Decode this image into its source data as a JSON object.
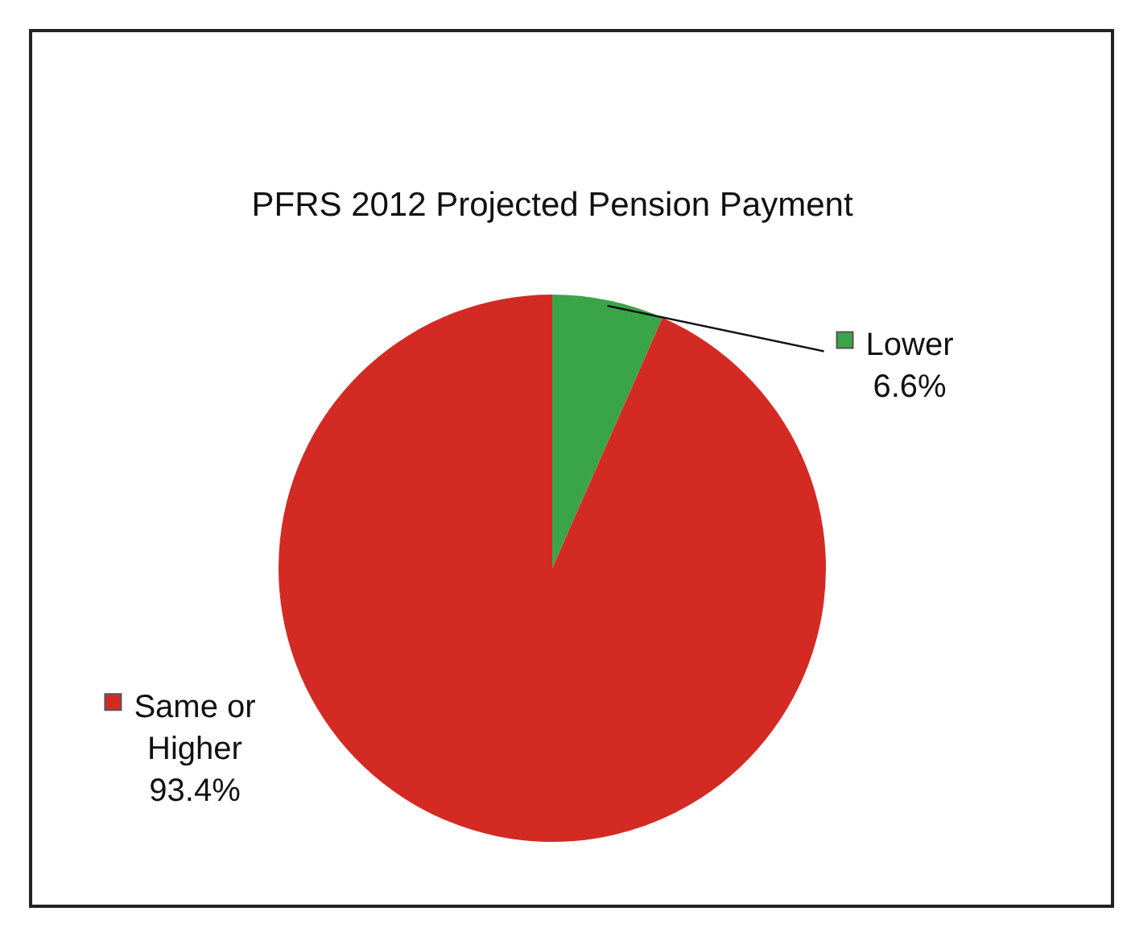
{
  "chart_data": {
    "type": "pie",
    "title": "PFRS 2012 Projected Pension Payment",
    "categories": [
      "Lower",
      "Same or Higher"
    ],
    "values": [
      6.6,
      93.4
    ],
    "value_labels": [
      "6.6%",
      "93.4%"
    ],
    "colors": [
      "#3aa548",
      "#d42a24"
    ],
    "legend": "right"
  }
}
